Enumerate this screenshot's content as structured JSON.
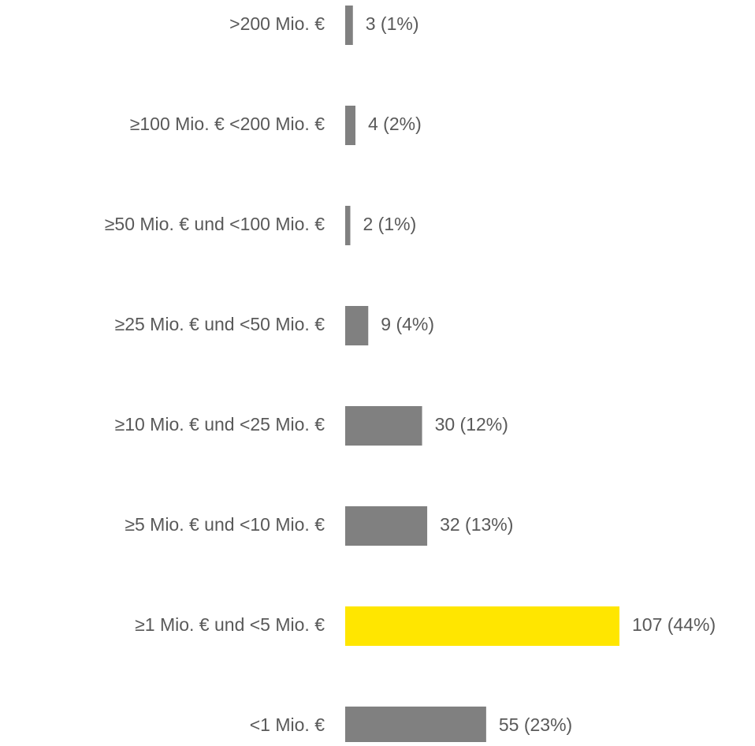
{
  "chart_data": {
    "type": "hbar",
    "categories": [
      ">200 Mio. €",
      "≥100 Mio. € <200 Mio. €",
      "≥50 Mio. € und <100 Mio. €",
      "≥25 Mio. € und <50 Mio. €",
      "≥10 Mio. € und <25 Mio. €",
      "≥5 Mio. € und <10 Mio. €",
      "≥1 Mio. € und <5 Mio. €",
      "<1 Mio. €"
    ],
    "values": [
      3,
      4,
      2,
      9,
      30,
      32,
      107,
      55
    ],
    "value_labels": [
      "3 (1%)",
      "4 (2%)",
      "2 (1%)",
      "9 (4%)",
      "30 (12%)",
      "32 (13%)",
      "107 (44%)",
      "55 (23%)"
    ],
    "colors": [
      "#808080",
      "#808080",
      "#808080",
      "#808080",
      "#808080",
      "#808080",
      "#ffe600",
      "#808080"
    ]
  }
}
